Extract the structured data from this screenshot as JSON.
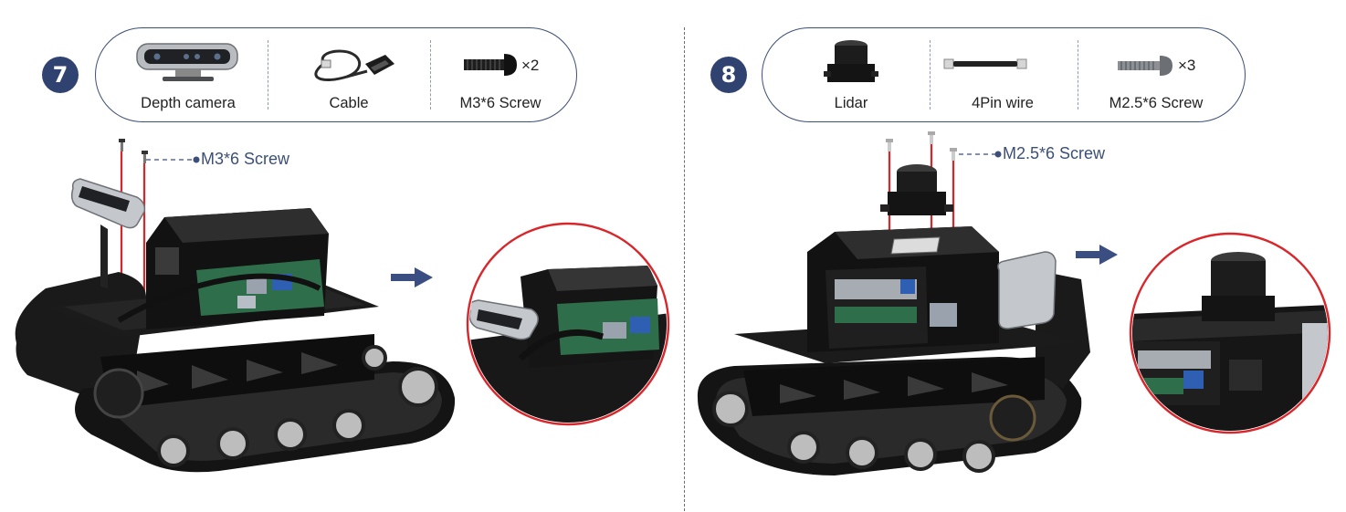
{
  "steps": [
    {
      "number": "7",
      "parts": [
        {
          "label": "Depth camera",
          "icon": "depth-camera-icon"
        },
        {
          "label": "Cable",
          "icon": "cable-icon"
        },
        {
          "label": "M3*6 Screw",
          "icon": "screw-icon",
          "quantity": "×2"
        }
      ],
      "callout": "M3*6 Screw"
    },
    {
      "number": "8",
      "parts": [
        {
          "label": "Lidar",
          "icon": "lidar-icon"
        },
        {
          "label": "4Pin wire",
          "icon": "wire-icon"
        },
        {
          "label": "M2.5*6 Screw",
          "icon": "screw-icon",
          "quantity": "×3"
        }
      ],
      "callout": "M2.5*6 Screw"
    }
  ],
  "colors": {
    "accent": "#2f4270",
    "highlight": "#d9262b",
    "arrow": "#3a4e82"
  }
}
